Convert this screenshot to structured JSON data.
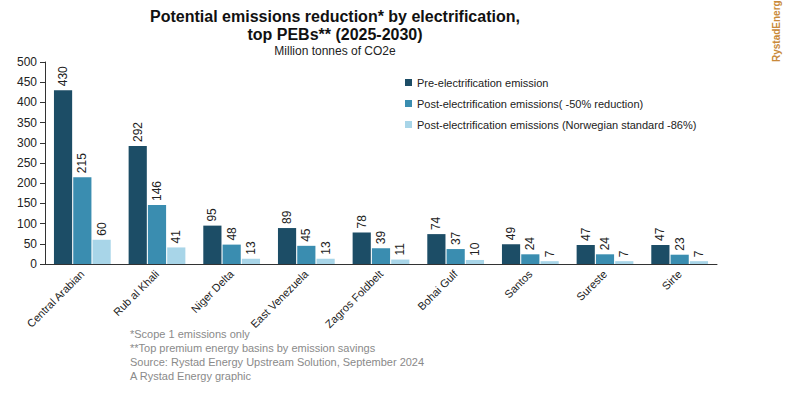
{
  "chart_data": {
    "type": "bar",
    "title": "Potential emissions reduction* by electrification, top PEBs** (2025-2030)",
    "subtitle": "Million tonnes of CO2e",
    "categories": [
      "Central Arabian",
      "Rub al Khali",
      "Niger Delta",
      "East Venezuela",
      "Zagros Foldbelt",
      "Bohai Gulf",
      "Santos",
      "Sureste",
      "Sirte"
    ],
    "series": [
      {
        "name": "Pre-electrification emission",
        "color": "#1c4d66",
        "values": [
          430,
          292,
          95,
          89,
          78,
          74,
          49,
          47,
          47
        ]
      },
      {
        "name": "Post-electrification emissions( -50% reduction)",
        "color": "#3a8db0",
        "values": [
          215,
          146,
          48,
          45,
          39,
          37,
          24,
          24,
          23
        ]
      },
      {
        "name": "Post-electrification emissions (Norwegian standard -86%)",
        "color": "#a8d5e8",
        "values": [
          60,
          41,
          13,
          13,
          11,
          10,
          7,
          7,
          7
        ]
      }
    ],
    "ylim": [
      0,
      500
    ],
    "yticks": [
      0,
      50,
      100,
      150,
      200,
      250,
      300,
      350,
      400,
      450,
      500
    ],
    "grid": false,
    "legend": "top-right",
    "data_labels": true,
    "footnotes": [
      "*Scope 1 emissions only",
      "**Top premium energy basins by emission savings",
      "Source: Rystad Energy Upstream Solution, September 2024",
      "A Rystad Energy graphic"
    ],
    "brand": "RystadEnergy"
  }
}
